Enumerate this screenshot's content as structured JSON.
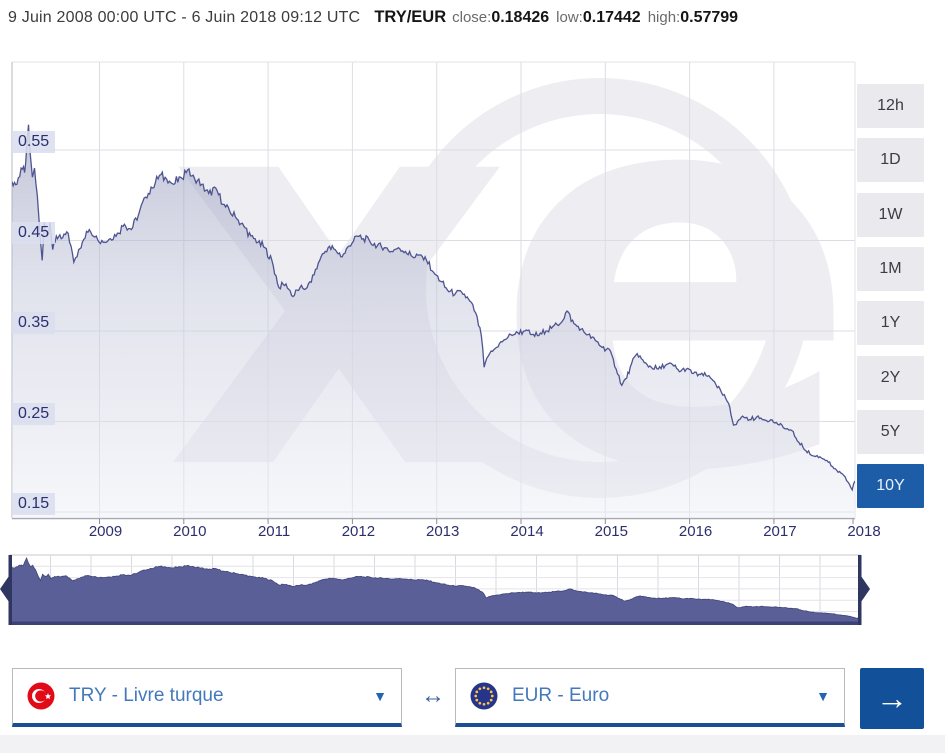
{
  "header": {
    "date_range": "9 Juin 2008 00:00 UTC - 6 Juin 2018 09:12 UTC",
    "pair": "TRY/EUR",
    "close_label": "close:",
    "close_value": "0.18426",
    "low_label": "low:",
    "low_value": "0.17442",
    "high_label": "high:",
    "high_value": "0.57799"
  },
  "range_buttons": [
    {
      "label": "12h",
      "selected": false
    },
    {
      "label": "1D",
      "selected": false
    },
    {
      "label": "1W",
      "selected": false
    },
    {
      "label": "1M",
      "selected": false
    },
    {
      "label": "1Y",
      "selected": false
    },
    {
      "label": "2Y",
      "selected": false
    },
    {
      "label": "5Y",
      "selected": false
    },
    {
      "label": "10Y",
      "selected": true
    }
  ],
  "watermark_text": "xe",
  "chart_data": {
    "type": "area",
    "title": "TRY/EUR exchange rate, 10 years",
    "x_unit": "months since 2008-06",
    "x_axis_years": [
      "2009",
      "2010",
      "2011",
      "2012",
      "2013",
      "2014",
      "2015",
      "2016",
      "2017",
      "2018"
    ],
    "y_ticks": [
      0.55,
      0.45,
      0.35,
      0.25,
      0.15
    ],
    "ylim": [
      0.144,
      0.647
    ],
    "close": 0.18426,
    "low": 0.17442,
    "high": 0.57799,
    "legend": "none",
    "grid": true,
    "points": [
      [
        0,
        0.515
      ],
      [
        0.7,
        0.512
      ],
      [
        1.3,
        0.53
      ],
      [
        1.8,
        0.525
      ],
      [
        2.1,
        0.555
      ],
      [
        2.35,
        0.578
      ],
      [
        2.6,
        0.545
      ],
      [
        2.9,
        0.52
      ],
      [
        3.2,
        0.53
      ],
      [
        3.6,
        0.5
      ],
      [
        4.0,
        0.455
      ],
      [
        4.3,
        0.428
      ],
      [
        4.6,
        0.47
      ],
      [
        5.0,
        0.455
      ],
      [
        5.4,
        0.47
      ],
      [
        5.8,
        0.44
      ],
      [
        6.3,
        0.455
      ],
      [
        7,
        0.452
      ],
      [
        8,
        0.458
      ],
      [
        8.8,
        0.426
      ],
      [
        9.5,
        0.44
      ],
      [
        10,
        0.448
      ],
      [
        11,
        0.462
      ],
      [
        12,
        0.455
      ],
      [
        13,
        0.448
      ],
      [
        14,
        0.452
      ],
      [
        15,
        0.458
      ],
      [
        16,
        0.468
      ],
      [
        17,
        0.462
      ],
      [
        18,
        0.478
      ],
      [
        19,
        0.498
      ],
      [
        20,
        0.508
      ],
      [
        21,
        0.522
      ],
      [
        22,
        0.518
      ],
      [
        23,
        0.512
      ],
      [
        24,
        0.52
      ],
      [
        25,
        0.528
      ],
      [
        26,
        0.518
      ],
      [
        27,
        0.512
      ],
      [
        28,
        0.502
      ],
      [
        29,
        0.508
      ],
      [
        30,
        0.49
      ],
      [
        31,
        0.482
      ],
      [
        32,
        0.474
      ],
      [
        33,
        0.466
      ],
      [
        34,
        0.455
      ],
      [
        35,
        0.448
      ],
      [
        36,
        0.442
      ],
      [
        37,
        0.428
      ],
      [
        38,
        0.398
      ],
      [
        39,
        0.402
      ],
      [
        40,
        0.388
      ],
      [
        41,
        0.398
      ],
      [
        42,
        0.398
      ],
      [
        43,
        0.412
      ],
      [
        44,
        0.432
      ],
      [
        45,
        0.442
      ],
      [
        46,
        0.44
      ],
      [
        47,
        0.432
      ],
      [
        48,
        0.444
      ],
      [
        49,
        0.455
      ],
      [
        50,
        0.452
      ],
      [
        51,
        0.448
      ],
      [
        52,
        0.444
      ],
      [
        53,
        0.442
      ],
      [
        54,
        0.438
      ],
      [
        55,
        0.442
      ],
      [
        56,
        0.438
      ],
      [
        57,
        0.432
      ],
      [
        58,
        0.434
      ],
      [
        59,
        0.428
      ],
      [
        60,
        0.415
      ],
      [
        61,
        0.405
      ],
      [
        62,
        0.395
      ],
      [
        63,
        0.39
      ],
      [
        64,
        0.393
      ],
      [
        65,
        0.385
      ],
      [
        66,
        0.37
      ],
      [
        66.8,
        0.345
      ],
      [
        67.2,
        0.31
      ],
      [
        68,
        0.325
      ],
      [
        69,
        0.332
      ],
      [
        70,
        0.34
      ],
      [
        71,
        0.346
      ],
      [
        72,
        0.348
      ],
      [
        73,
        0.35
      ],
      [
        74,
        0.346
      ],
      [
        75,
        0.345
      ],
      [
        76,
        0.35
      ],
      [
        77,
        0.355
      ],
      [
        78,
        0.358
      ],
      [
        79,
        0.372
      ],
      [
        80,
        0.358
      ],
      [
        81,
        0.352
      ],
      [
        82,
        0.346
      ],
      [
        83,
        0.34
      ],
      [
        84,
        0.332
      ],
      [
        85,
        0.33
      ],
      [
        86,
        0.308
      ],
      [
        86.8,
        0.29
      ],
      [
        87.5,
        0.298
      ],
      [
        88,
        0.31
      ],
      [
        89,
        0.325
      ],
      [
        90,
        0.315
      ],
      [
        91,
        0.31
      ],
      [
        92,
        0.308
      ],
      [
        93,
        0.312
      ],
      [
        94,
        0.313
      ],
      [
        95,
        0.305
      ],
      [
        96,
        0.308
      ],
      [
        97,
        0.303
      ],
      [
        98,
        0.302
      ],
      [
        99,
        0.3
      ],
      [
        100,
        0.294
      ],
      [
        101,
        0.282
      ],
      [
        102,
        0.27
      ],
      [
        102.7,
        0.246
      ],
      [
        103.5,
        0.252
      ],
      [
        104,
        0.256
      ],
      [
        105,
        0.252
      ],
      [
        106,
        0.255
      ],
      [
        107,
        0.252
      ],
      [
        108,
        0.252
      ],
      [
        109,
        0.247
      ],
      [
        110,
        0.242
      ],
      [
        111,
        0.24
      ],
      [
        112,
        0.227
      ],
      [
        113,
        0.218
      ],
      [
        114,
        0.212
      ],
      [
        115,
        0.211
      ],
      [
        116,
        0.207
      ],
      [
        117,
        0.198
      ],
      [
        118,
        0.193
      ],
      [
        119,
        0.183
      ],
      [
        119.6,
        0.1744
      ],
      [
        120,
        0.1843
      ]
    ]
  },
  "converter": {
    "from_label": "TRY - Livre turque",
    "to_label": "EUR - Euro",
    "swap_icon": "↔",
    "go_icon": "→",
    "caret_icon": "▼"
  },
  "colors": {
    "accent_blue": "#1d5ca6",
    "link_blue": "#4379bc",
    "line": "#4e5490",
    "nav_fill": "#5a6097",
    "axis_text": "#2c2f6e",
    "try_flag_red": "#e30a17",
    "eu_flag_blue": "#27348b",
    "eu_star_gold": "#f8c942"
  }
}
